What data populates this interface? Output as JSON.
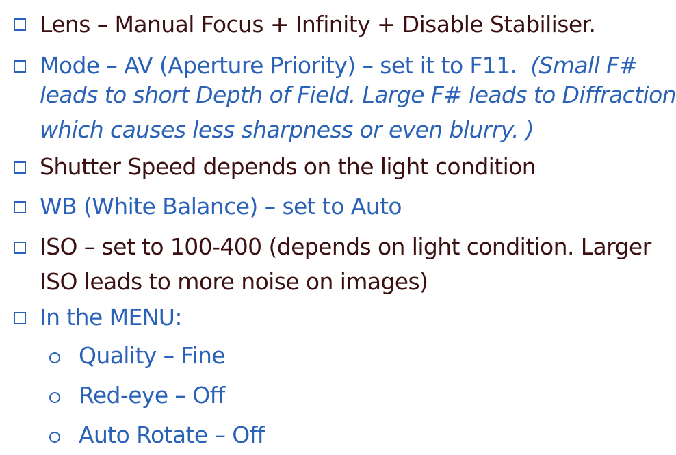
{
  "colors": {
    "bullet_accent": "#2a62b8",
    "dark_text": "#3b1010",
    "blue_text": "#2a62b8"
  },
  "icons": {
    "bullet": "checkbox-square-icon",
    "sub_bullet": "circle-bullet-icon"
  },
  "bullets": [
    {
      "text": "Lens – Manual Focus + Infinity + Disable Stabiliser."
    },
    {
      "text": "Mode – AV (Aperture Priority) – set it to F11.",
      "note_line1": "(Small F#",
      "note_line2": "leads to short Depth of Field. Large F# leads to Diffraction",
      "note_line3": "which causes less sharpness or even blurry. )"
    },
    {
      "text": "Shutter Speed depends on the light condition"
    },
    {
      "text": "WB (White Balance) – set to Auto"
    },
    {
      "text_line1": "ISO – set to 100-400 (depends on light condition. Larger",
      "text_line2": "ISO leads to more noise on images)"
    },
    {
      "text": "In the MENU:"
    }
  ],
  "menu_items": [
    "Quality – Fine",
    "Red-eye – Off",
    "Auto Rotate – Off"
  ]
}
